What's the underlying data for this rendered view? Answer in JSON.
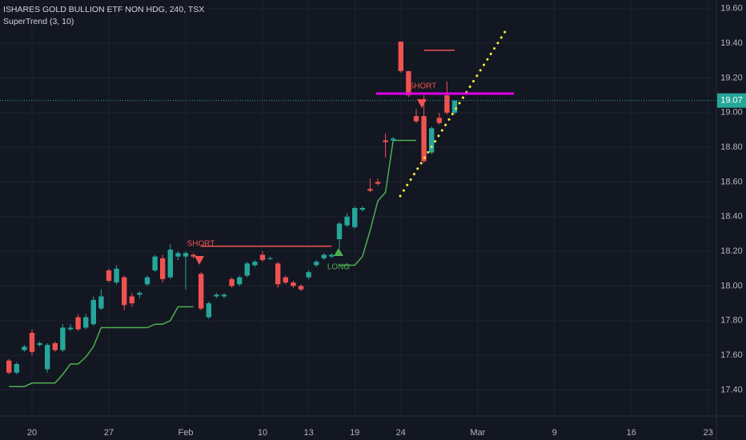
{
  "chart_data": {
    "type": "candlestick",
    "title": "ISHARES GOLD BULLION ETF NON HDG, 240, TSX",
    "subtitle": "SuperTrend (3, 10)",
    "categories": [
      null,
      null,
      null,
      "20",
      null,
      null,
      null,
      null,
      null,
      null,
      null,
      null,
      null,
      "27",
      null,
      null,
      null,
      null,
      null,
      null,
      null,
      null,
      null,
      "Feb",
      null,
      null,
      null,
      null,
      null,
      null,
      null,
      null,
      null,
      "10",
      null,
      null,
      null,
      null,
      null,
      "13",
      null,
      null,
      null,
      null,
      null,
      "19",
      null,
      null,
      null,
      null,
      null,
      "24",
      null,
      null,
      null,
      null,
      null,
      null,
      null,
      null,
      null,
      "Mar",
      null,
      null,
      null,
      null,
      null,
      null,
      null,
      null,
      null,
      "9",
      null,
      null,
      null,
      null,
      null,
      null,
      null,
      null,
      null,
      "16",
      null,
      null,
      null,
      null,
      null,
      null,
      null,
      null,
      null,
      "23",
      null
    ],
    "open": [
      17.57,
      17.5,
      17.63,
      17.73,
      17.66,
      17.52,
      17.67,
      17.63,
      17.75,
      17.82,
      17.76,
      17.78,
      17.87,
      18.09,
      18.02,
      18.05,
      17.94,
      17.95,
      18.01,
      18.09,
      18.16,
      18.05,
      18.17,
      18.17,
      18.18,
      18.07,
      17.82,
      17.94,
      17.94,
      18.04,
      18.01,
      18.06,
      18.12,
      18.18,
      18.16,
      18.13,
      18.05,
      18.02,
      18.0,
      18.05,
      18.12,
      18.16,
      18.17,
      18.27,
      18.35,
      18.34,
      18.44,
      18.56,
      18.6,
      18.84,
      18.84,
      19.41,
      19.24,
      18.98,
      18.98,
      18.77,
      18.97,
      19.1,
      19.0,
      null,
      null,
      null,
      null,
      null,
      null,
      null,
      null,
      null,
      null,
      null,
      null,
      null,
      null,
      null,
      null,
      null,
      null,
      null,
      null,
      null,
      null,
      null,
      null,
      null,
      null,
      null,
      null,
      null,
      null,
      null,
      null,
      null,
      null
    ],
    "high": [
      17.58,
      17.56,
      17.66,
      17.75,
      17.68,
      17.67,
      17.68,
      17.78,
      17.78,
      17.84,
      17.84,
      17.94,
      17.98,
      18.1,
      18.12,
      18.06,
      17.96,
      17.97,
      18.06,
      18.18,
      18.18,
      18.24,
      18.2,
      18.2,
      18.19,
      18.08,
      17.91,
      17.96,
      17.96,
      18.05,
      18.06,
      18.14,
      18.15,
      18.2,
      18.17,
      18.14,
      18.06,
      18.03,
      18.01,
      18.09,
      18.15,
      18.19,
      18.19,
      18.37,
      18.42,
      18.46,
      18.46,
      18.62,
      18.62,
      18.88,
      18.86,
      19.41,
      19.24,
      19.02,
      19.1,
      18.92,
      19.0,
      19.18,
      19.07,
      null,
      null,
      null,
      null,
      null,
      null,
      null,
      null,
      null,
      null,
      null,
      null,
      null,
      null,
      null,
      null,
      null,
      null,
      null,
      null,
      null,
      null,
      null,
      null,
      null,
      null,
      null,
      null,
      null,
      null,
      null,
      null,
      null,
      null
    ],
    "low": [
      17.49,
      17.49,
      17.62,
      17.6,
      17.65,
      17.5,
      17.62,
      17.62,
      17.74,
      17.74,
      17.75,
      17.77,
      17.86,
      18.02,
      18.01,
      17.86,
      17.88,
      17.93,
      18.0,
      18.08,
      18.02,
      18.04,
      18.15,
      17.98,
      18.16,
      17.86,
      17.81,
      17.93,
      17.93,
      17.99,
      18.0,
      18.05,
      18.11,
      18.14,
      18.15,
      17.99,
      18.01,
      17.99,
      17.97,
      18.04,
      18.11,
      18.15,
      18.16,
      18.22,
      18.34,
      18.33,
      18.43,
      18.54,
      18.58,
      18.74,
      18.83,
      19.23,
      19.09,
      18.94,
      18.71,
      18.76,
      18.93,
      18.99,
      18.99,
      null,
      null,
      null,
      null,
      null,
      null,
      null,
      null,
      null,
      null,
      null,
      null,
      null,
      null,
      null,
      null,
      null,
      null,
      null,
      null,
      null,
      null,
      null,
      null,
      null,
      null,
      null,
      null,
      null,
      null,
      null,
      null,
      null,
      null
    ],
    "close": [
      17.5,
      17.55,
      17.65,
      17.62,
      17.67,
      17.66,
      17.63,
      17.76,
      17.76,
      17.75,
      17.82,
      17.92,
      17.94,
      18.03,
      18.1,
      17.89,
      17.9,
      17.96,
      18.05,
      18.17,
      18.04,
      18.21,
      18.19,
      18.19,
      18.17,
      17.87,
      17.9,
      17.95,
      17.95,
      18.0,
      18.05,
      18.13,
      18.14,
      18.15,
      18.16,
      18.01,
      18.02,
      18.0,
      17.98,
      18.08,
      18.14,
      18.18,
      18.18,
      18.36,
      18.4,
      18.45,
      18.45,
      18.55,
      18.59,
      18.83,
      18.85,
      19.24,
      19.1,
      18.95,
      18.72,
      18.91,
      18.94,
      19.0,
      19.07,
      null,
      null,
      null,
      null,
      null,
      null,
      null,
      null,
      null,
      null,
      null,
      null,
      null,
      null,
      null,
      null,
      null,
      null,
      null,
      null,
      null,
      null,
      null,
      null,
      null,
      null,
      null,
      null,
      null,
      null,
      null,
      null,
      null,
      null
    ],
    "up_color": "#26a69a",
    "down_color": "#ef5350",
    "supertrend": {
      "up": [
        17.42,
        17.42,
        17.42,
        17.44,
        17.44,
        17.44,
        17.44,
        17.49,
        17.55,
        17.55,
        17.59,
        17.65,
        17.76,
        17.76,
        17.76,
        17.76,
        17.76,
        17.76,
        17.76,
        17.78,
        17.78,
        17.8,
        17.88,
        17.88,
        17.88,
        null,
        null,
        null,
        null,
        null,
        null,
        null,
        null,
        null,
        null,
        null,
        null,
        null,
        null,
        null,
        null,
        null,
        null,
        18.12,
        18.12,
        18.12,
        18.17,
        18.32,
        18.49,
        18.54,
        18.84,
        18.84,
        18.84,
        18.84,
        null,
        null,
        null,
        null,
        null,
        null,
        null,
        null,
        null,
        null,
        null,
        null,
        null,
        null,
        null,
        null,
        null,
        null,
        null,
        null,
        null,
        null,
        null,
        null,
        null,
        null,
        null,
        null,
        null,
        null,
        null,
        null,
        null,
        null,
        null,
        null,
        null,
        null,
        null
      ],
      "down": [
        null,
        null,
        null,
        null,
        null,
        null,
        null,
        null,
        null,
        null,
        null,
        null,
        null,
        null,
        null,
        null,
        null,
        null,
        null,
        null,
        null,
        null,
        null,
        null,
        null,
        18.23,
        18.23,
        18.23,
        18.23,
        18.23,
        18.23,
        18.23,
        18.23,
        18.23,
        18.23,
        18.23,
        18.23,
        18.23,
        18.23,
        18.23,
        18.23,
        18.23,
        18.23,
        null,
        null,
        null,
        null,
        null,
        null,
        null,
        null,
        null,
        null,
        null,
        19.36,
        19.36,
        19.36,
        19.36,
        19.36,
        null,
        null,
        null,
        null,
        null,
        null,
        null,
        null,
        null,
        null,
        null,
        null,
        null,
        null,
        null,
        null,
        null,
        null,
        null,
        null,
        null,
        null,
        null,
        null,
        null,
        null,
        null,
        null,
        null,
        null,
        null,
        null,
        null,
        null
      ],
      "up_color": "#4caf50",
      "down_color": "#f05350"
    },
    "last_price": 19.07,
    "last_price_color": "#26a69a",
    "hline": 19.11,
    "hline_color": "#e100e6",
    "annotations": [
      "SHORT",
      "LONG",
      "SHORT"
    ],
    "ylim": [
      17.25,
      19.65
    ],
    "yticks": [
      {
        "value": 17.4,
        "label": "17.40"
      },
      {
        "value": 17.6,
        "label": "17.60"
      },
      {
        "value": 17.8,
        "label": "17.80"
      },
      {
        "value": 18.0,
        "label": "18.00"
      },
      {
        "value": 18.2,
        "label": "18.20"
      },
      {
        "value": 18.4,
        "label": "18.40"
      },
      {
        "value": 18.6,
        "label": "18.60"
      },
      {
        "value": 18.8,
        "label": "18.80"
      },
      {
        "value": 19.0,
        "label": "19.00"
      },
      {
        "value": 19.2,
        "label": "19.20"
      },
      {
        "value": 19.4,
        "label": "19.40"
      },
      {
        "value": 19.6,
        "label": "19.60"
      }
    ],
    "grid": true
  }
}
